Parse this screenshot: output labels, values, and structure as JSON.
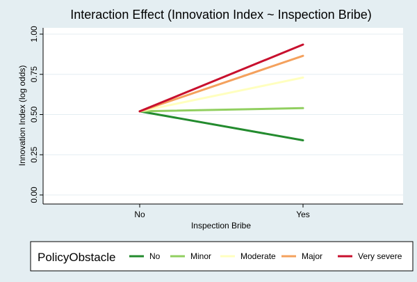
{
  "chart_data": {
    "type": "line",
    "title": "Interaction Effect (Innovation Index ~ Inspection Bribe)",
    "xlabel": "Inspection Bribe",
    "ylabel": "Innovation Index (log odds)",
    "categories": [
      "No",
      "Yes"
    ],
    "yticks": [
      "0.00",
      "0.25",
      "0.50",
      "0.75",
      "1.00"
    ],
    "ylim": [
      0,
      1.05
    ],
    "grid": true,
    "legend": {
      "title": "PolicyObstacle",
      "position": "bottom"
    },
    "series": [
      {
        "name": "No",
        "color": "#238b2e",
        "values": [
          0.52,
          0.34
        ]
      },
      {
        "name": "Minor",
        "color": "#91cf60",
        "values": [
          0.52,
          0.54
        ]
      },
      {
        "name": "Moderate",
        "color": "#ffffbf",
        "values": [
          0.52,
          0.73
        ]
      },
      {
        "name": "Major",
        "color": "#f4a15d",
        "values": [
          0.52,
          0.865
        ]
      },
      {
        "name": "Very severe",
        "color": "#c8102e",
        "values": [
          0.52,
          0.935
        ]
      }
    ]
  }
}
